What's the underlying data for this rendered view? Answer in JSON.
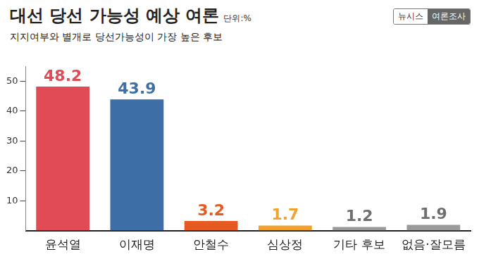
{
  "chart_data": {
    "type": "bar",
    "title": "대선 당선 가능성 예상 여론",
    "unit": "단위:%",
    "subtitle": "지지여부와 별개로 당선가능성이 가장 높은 후보",
    "source": [
      "뉴시스",
      "여론조사"
    ],
    "categories": [
      "윤석열",
      "이재명",
      "안철수",
      "심상정",
      "기타 후보",
      "없음·잘모름"
    ],
    "values": [
      48.2,
      43.9,
      3.2,
      1.7,
      1.2,
      1.9
    ],
    "colors": [
      "#e04b55",
      "#3d6fa6",
      "#e65a22",
      "#f2a12e",
      "#9a9a9a",
      "#9a9a9a"
    ],
    "ylim": [
      0,
      55
    ],
    "yticks": [
      10,
      20,
      30,
      40,
      50
    ],
    "grid": false,
    "data_labels": true
  }
}
